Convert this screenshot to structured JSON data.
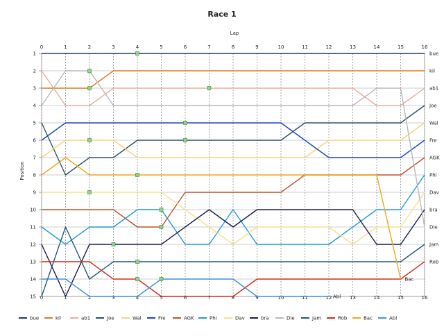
{
  "chart_data": {
    "type": "line",
    "title": "Race 1",
    "xlabel": "Lap",
    "ylabel": "Position",
    "xlim": [
      0,
      16
    ],
    "ylim": [
      1,
      15
    ],
    "y_inverted": true,
    "grid": true,
    "legend": "bottom",
    "x_ticks": [
      "0",
      "1",
      "2",
      "3",
      "4",
      "5",
      "6",
      "7",
      "8",
      "9",
      "10",
      "11",
      "12",
      "13",
      "14",
      "15",
      "16"
    ],
    "y_ticks": [
      "1",
      "2",
      "3",
      "4",
      "5",
      "6",
      "7",
      "8",
      "9",
      "10",
      "11",
      "12",
      "13",
      "14",
      "15"
    ],
    "series": [
      {
        "name": "bue",
        "color": "#1f3a5f",
        "label_end": "bue",
        "points": [
          [
            0,
            1
          ],
          [
            16,
            1
          ]
        ],
        "pits": [
          [
            4,
            1
          ]
        ]
      },
      {
        "name": "kil",
        "color": "#e07b18",
        "label_end": "kil",
        "points": [
          [
            0,
            3
          ],
          [
            2,
            3
          ],
          [
            3,
            2
          ],
          [
            16,
            2
          ]
        ],
        "pits": [
          [
            2,
            3
          ]
        ]
      },
      {
        "name": "ab1",
        "color": "#f2a99a",
        "label_end": "ab1",
        "points": [
          [
            0,
            2
          ],
          [
            1,
            4
          ],
          [
            2,
            4
          ],
          [
            3,
            3
          ],
          [
            13,
            3
          ],
          [
            14,
            4
          ],
          [
            15,
            4
          ],
          [
            16,
            3
          ]
        ],
        "pits": [
          [
            7,
            3
          ]
        ]
      },
      {
        "name": "Joe",
        "color": "#2e4e66",
        "label_end": "Joe",
        "points": [
          [
            0,
            5
          ],
          [
            1,
            8
          ],
          [
            2,
            7
          ],
          [
            3,
            7
          ],
          [
            4,
            6
          ],
          [
            10,
            6
          ],
          [
            11,
            5
          ],
          [
            15,
            5
          ],
          [
            16,
            4
          ]
        ],
        "pits": [
          [
            6,
            6
          ]
        ]
      },
      {
        "name": "Wal",
        "color": "#f6d478",
        "label_end": "Wal",
        "points": [
          [
            0,
            7
          ],
          [
            1,
            6
          ],
          [
            3,
            6
          ],
          [
            4,
            7
          ],
          [
            11,
            7
          ],
          [
            12,
            6
          ],
          [
            15,
            6
          ],
          [
            16,
            5
          ]
        ],
        "pits": [
          [
            2,
            6
          ]
        ]
      },
      {
        "name": "Fre",
        "color": "#1c44b8",
        "label_end": "Fre",
        "points": [
          [
            0,
            6
          ],
          [
            1,
            5
          ],
          [
            10,
            5
          ],
          [
            12,
            7
          ],
          [
            15,
            7
          ],
          [
            16,
            6
          ]
        ],
        "pits": [
          [
            6,
            5
          ]
        ]
      },
      {
        "name": "AGK",
        "color": "#c0502a",
        "label_end": "AGK",
        "points": [
          [
            0,
            10
          ],
          [
            3,
            10
          ],
          [
            4,
            11
          ],
          [
            5,
            11
          ],
          [
            6,
            9
          ],
          [
            10,
            9
          ],
          [
            11,
            8
          ],
          [
            15,
            8
          ],
          [
            16,
            7
          ]
        ],
        "pits": [
          [
            5,
            11
          ]
        ]
      },
      {
        "name": "Phi",
        "color": "#1f9ad6",
        "label_end": "Phi",
        "points": [
          [
            0,
            11
          ],
          [
            1,
            12
          ],
          [
            2,
            11
          ],
          [
            3,
            11
          ],
          [
            4,
            10
          ],
          [
            5,
            10
          ],
          [
            6,
            12
          ],
          [
            7,
            12
          ],
          [
            8,
            10
          ],
          [
            9,
            12
          ],
          [
            12,
            12
          ],
          [
            14,
            10
          ],
          [
            15,
            10
          ],
          [
            16,
            8
          ]
        ],
        "pits": [
          [
            5,
            10
          ]
        ]
      },
      {
        "name": "Dav",
        "color": "#f8e08a",
        "label_end": "Dav",
        "points": [
          [
            0,
            9
          ],
          [
            5,
            9
          ],
          [
            6,
            10
          ],
          [
            8,
            12
          ],
          [
            9,
            11
          ],
          [
            12,
            11
          ],
          [
            13,
            12
          ],
          [
            14,
            11
          ],
          [
            15,
            11
          ],
          [
            16,
            9
          ]
        ],
        "pits": [
          [
            2,
            9
          ]
        ]
      },
      {
        "name": "bra",
        "color": "#1a1a4a",
        "label_end": "bra",
        "points": [
          [
            0,
            12
          ],
          [
            1,
            15
          ],
          [
            2,
            12
          ],
          [
            5,
            12
          ],
          [
            7,
            10
          ],
          [
            8,
            11
          ],
          [
            9,
            10
          ],
          [
            13,
            10
          ],
          [
            14,
            12
          ],
          [
            15,
            12
          ],
          [
            16,
            10
          ]
        ],
        "pits": [
          [
            3,
            12
          ]
        ]
      },
      {
        "name": "Die",
        "color": "#b8b8b8",
        "label_end": "Die",
        "points": [
          [
            0,
            4
          ],
          [
            1,
            2
          ],
          [
            2,
            2
          ],
          [
            3,
            4
          ],
          [
            13,
            4
          ],
          [
            14,
            3
          ],
          [
            15,
            3
          ],
          [
            16,
            11
          ]
        ],
        "pits": [
          [
            2,
            2
          ]
        ]
      },
      {
        "name": "Jam",
        "color": "#1e5a78",
        "label_end": "Jam",
        "points": [
          [
            0,
            15
          ],
          [
            1,
            11
          ],
          [
            2,
            14
          ],
          [
            3,
            13
          ],
          [
            15,
            13
          ],
          [
            16,
            12
          ]
        ],
        "pits": [
          [
            4,
            13
          ]
        ]
      },
      {
        "name": "Rob",
        "color": "#d42a1a",
        "label_end": "Rob",
        "points": [
          [
            0,
            13
          ],
          [
            2,
            13
          ],
          [
            3,
            14
          ],
          [
            4,
            14
          ],
          [
            5,
            15
          ],
          [
            8,
            15
          ],
          [
            9,
            14
          ],
          [
            15,
            14
          ],
          [
            16,
            13
          ]
        ],
        "pits": [
          [
            4,
            14
          ]
        ]
      },
      {
        "name": "Bac",
        "color": "#f0a418",
        "label_end": "Bac",
        "points": [
          [
            0,
            8
          ],
          [
            1,
            7
          ],
          [
            2,
            8
          ],
          [
            14,
            8
          ],
          [
            15,
            14
          ]
        ],
        "pits": [
          [
            4,
            8
          ]
        ]
      },
      {
        "name": "Abl",
        "color": "#3b8fe0",
        "label_end": "Abl",
        "points": [
          [
            0,
            14
          ],
          [
            1,
            14
          ],
          [
            2,
            15
          ],
          [
            4,
            15
          ],
          [
            5,
            14
          ],
          [
            8,
            14
          ],
          [
            9,
            15
          ],
          [
            12,
            15
          ]
        ],
        "pits": [
          [
            5,
            14
          ]
        ]
      }
    ]
  }
}
